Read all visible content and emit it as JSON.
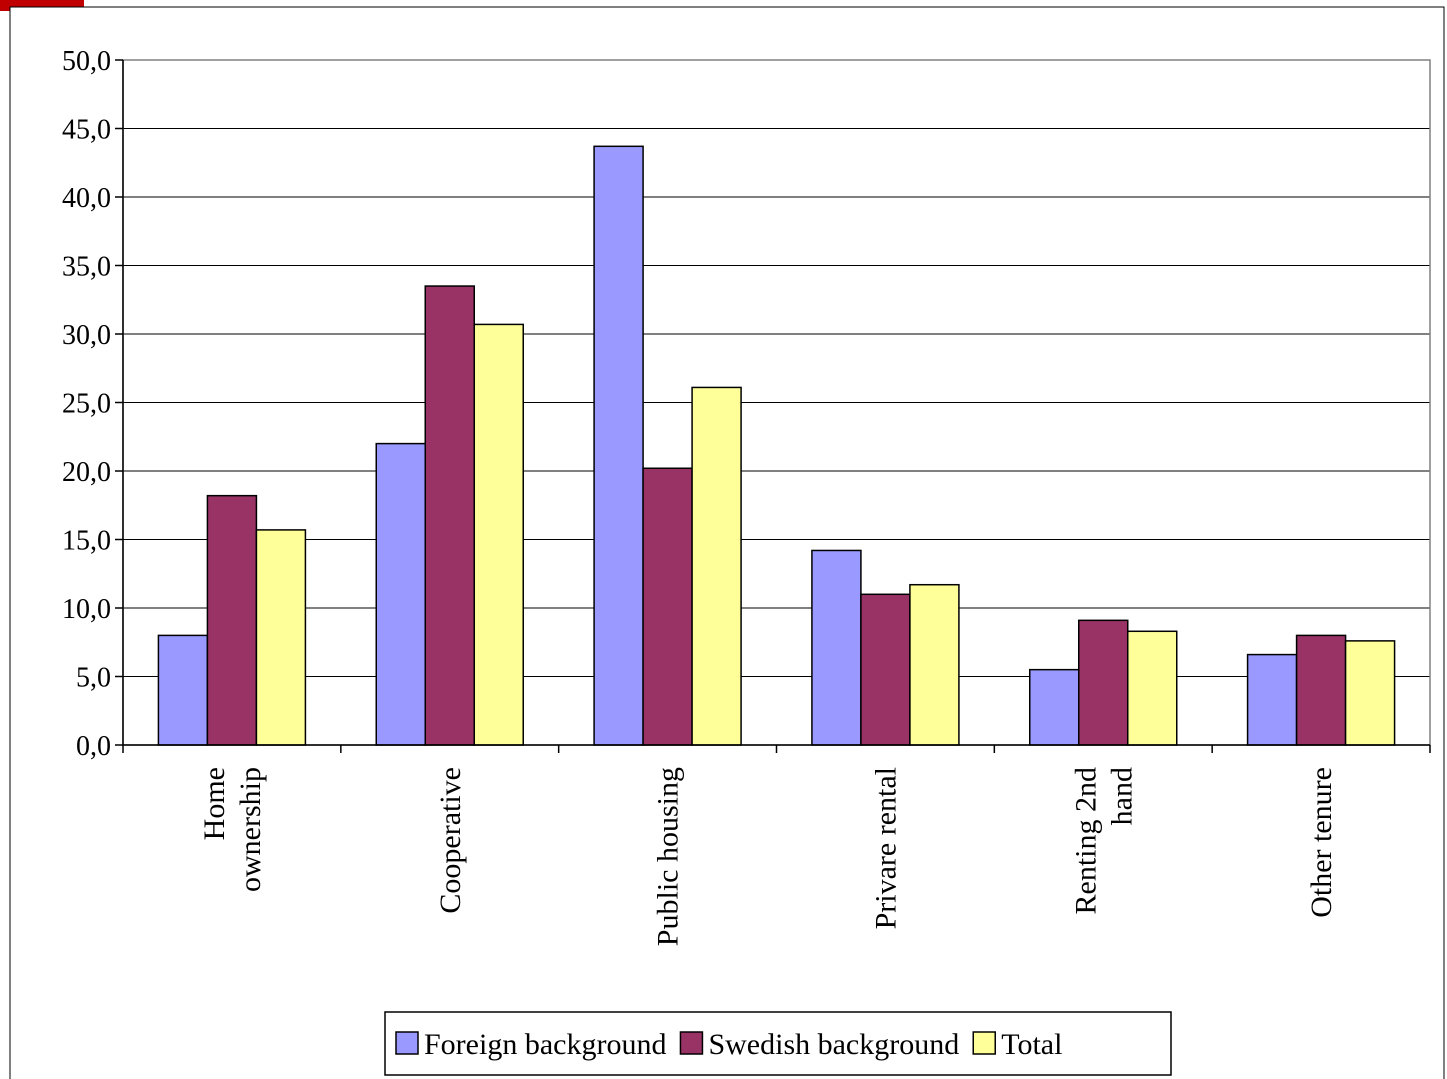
{
  "chart_data": {
    "type": "bar",
    "categories": [
      [
        "Home",
        "ownership"
      ],
      [
        "Cooperative"
      ],
      [
        "Public housing"
      ],
      [
        "Privare rental"
      ],
      [
        "Renting 2nd",
        "hand"
      ],
      [
        "Other tenure"
      ]
    ],
    "series": [
      {
        "name": "Foreign background",
        "color": "#9999ff",
        "values": [
          8.0,
          22.0,
          43.7,
          14.2,
          5.5,
          6.6
        ]
      },
      {
        "name": "Swedish background",
        "color": "#993366",
        "values": [
          18.2,
          33.5,
          20.2,
          11.0,
          9.1,
          8.0
        ]
      },
      {
        "name": "Total",
        "color": "#ffff99",
        "values": [
          15.7,
          30.7,
          26.1,
          11.7,
          8.3,
          7.6
        ]
      }
    ],
    "y_ticks": [
      "0,0",
      "5,0",
      "10,0",
      "15,0",
      "20,0",
      "25,0",
      "30,0",
      "35,0",
      "40,0",
      "45,0",
      "50,0"
    ],
    "ylim": [
      0,
      50
    ],
    "grid": true,
    "legend_position": "bottom-center",
    "accent_color": "#c00000"
  }
}
